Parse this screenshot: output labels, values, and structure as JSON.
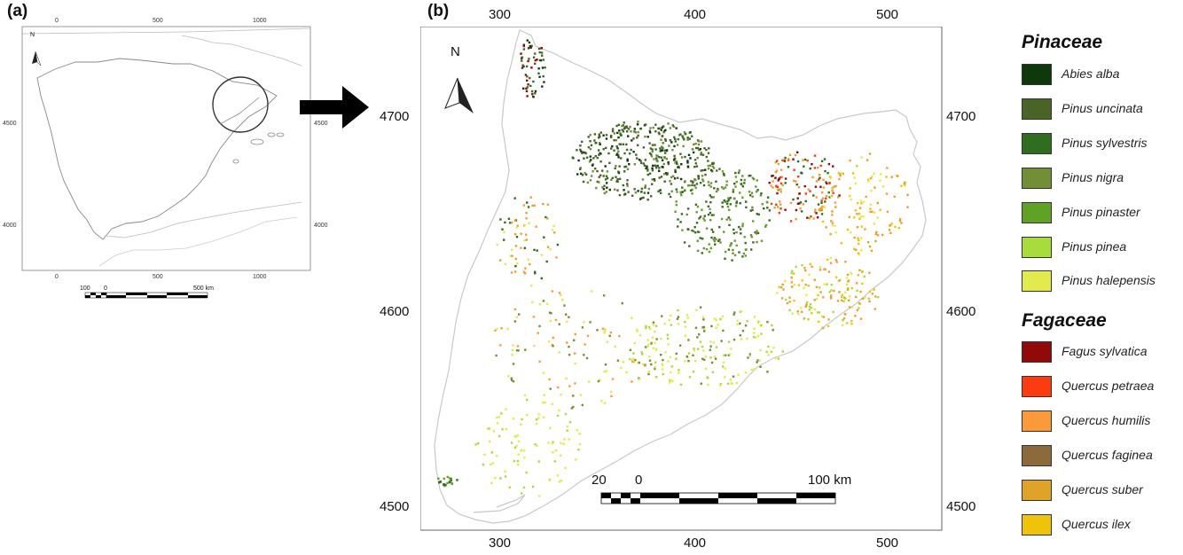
{
  "panel_a": {
    "label": "(a)",
    "north": "N",
    "top_ticks": [
      "0",
      "500",
      "1000"
    ],
    "bottom_ticks": [
      "0",
      "500",
      "1000"
    ],
    "left_ticks": [
      "4500",
      "4000"
    ],
    "right_ticks": [
      "4500",
      "4000"
    ],
    "scalebar": {
      "left": "100",
      "zero": "0",
      "right": "500 km"
    }
  },
  "panel_b": {
    "label": "(b)",
    "north": "N",
    "top_ticks": [
      "300",
      "400",
      "500"
    ],
    "bottom_ticks": [
      "300",
      "400",
      "500"
    ],
    "left_ticks": [
      "4700",
      "4600",
      "4500"
    ],
    "right_ticks": [
      "4700",
      "4600",
      "4500"
    ],
    "scalebar": {
      "left": "20",
      "zero": "0",
      "right": "100 km"
    }
  },
  "legend": {
    "groups": [
      {
        "title": "Pinaceae",
        "items": [
          {
            "label": "Abies alba",
            "color": "#0e3a0b"
          },
          {
            "label": "Pinus uncinata",
            "color": "#4a6326"
          },
          {
            "label": "Pinus sylvestris",
            "color": "#2f6e1f"
          },
          {
            "label": "Pinus nigra",
            "color": "#728f38"
          },
          {
            "label": "Pinus pinaster",
            "color": "#5fa226"
          },
          {
            "label": "Pinus pinea",
            "color": "#a8dc3c"
          },
          {
            "label": "Pinus halepensis",
            "color": "#e2ea4e"
          }
        ]
      },
      {
        "title": "Fagaceae",
        "items": [
          {
            "label": "Fagus sylvatica",
            "color": "#8f0a08"
          },
          {
            "label": "Quercus petraea",
            "color": "#fb3b10"
          },
          {
            "label": "Quercus humilis",
            "color": "#fb9a3b"
          },
          {
            "label": "Quercus faginea",
            "color": "#8c6a3c"
          },
          {
            "label": "Quercus suber",
            "color": "#e0a32a"
          },
          {
            "label": "Quercus ilex",
            "color": "#efc20c"
          }
        ]
      }
    ]
  }
}
